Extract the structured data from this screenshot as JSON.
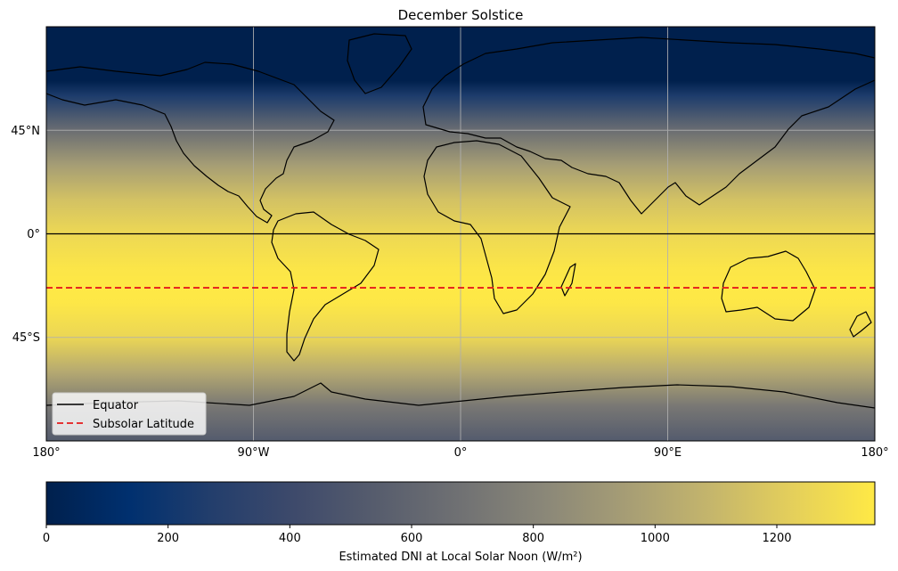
{
  "title": "December Solstice",
  "lon_ticks": [
    "180°",
    "90°W",
    "0°",
    "90°E",
    "180°"
  ],
  "lat_ticks": [
    "45°N",
    "0°",
    "45°S"
  ],
  "legend": {
    "equator_label": "Equator",
    "subsolar_label": "Subsolar Latitude"
  },
  "colorbar": {
    "ticks": [
      "0",
      "200",
      "400",
      "600",
      "800",
      "1000",
      "1200"
    ],
    "label": "Estimated DNI at Local Solar Noon (W/m²)"
  },
  "colors": {
    "equator_line": "#000000",
    "subsolar_line": "#e41a1c",
    "cmap_low": "#00204d",
    "cmap_high": "#ffe945"
  },
  "icons": [
    "coastline-icon"
  ],
  "chart_data": {
    "type": "heatmap",
    "title": "December Solstice",
    "projection": "PlateCarree",
    "extent": {
      "lon": [
        -180,
        180
      ],
      "lat": [
        -90,
        90
      ]
    },
    "subsolar_latitude": -23.44,
    "equator_latitude": 0,
    "field": "Estimated DNI at Local Solar Noon (W/m²)",
    "color_range": [
      0,
      1361
    ],
    "colormap": "cividis",
    "latitude_profile": {
      "lat": [
        90,
        75,
        66.5,
        60,
        45,
        30,
        15,
        0,
        -15,
        -23.44,
        -30,
        -45,
        -60,
        -75,
        -90
      ],
      "value": [
        0,
        0,
        0,
        250,
        650,
        950,
        1150,
        1270,
        1340,
        1361,
        1350,
        1260,
        1020,
        720,
        530
      ]
    },
    "xticks": [
      "180°",
      "90°W",
      "0°",
      "90°E",
      "180°"
    ],
    "yticks": [
      "45°N",
      "0°",
      "45°S"
    ],
    "grid": true,
    "legend": {
      "placement": "lower-left",
      "entries": [
        "Equator",
        "Subsolar Latitude"
      ]
    },
    "colorbar_ticks": [
      0,
      200,
      400,
      600,
      800,
      1000,
      1200
    ]
  }
}
